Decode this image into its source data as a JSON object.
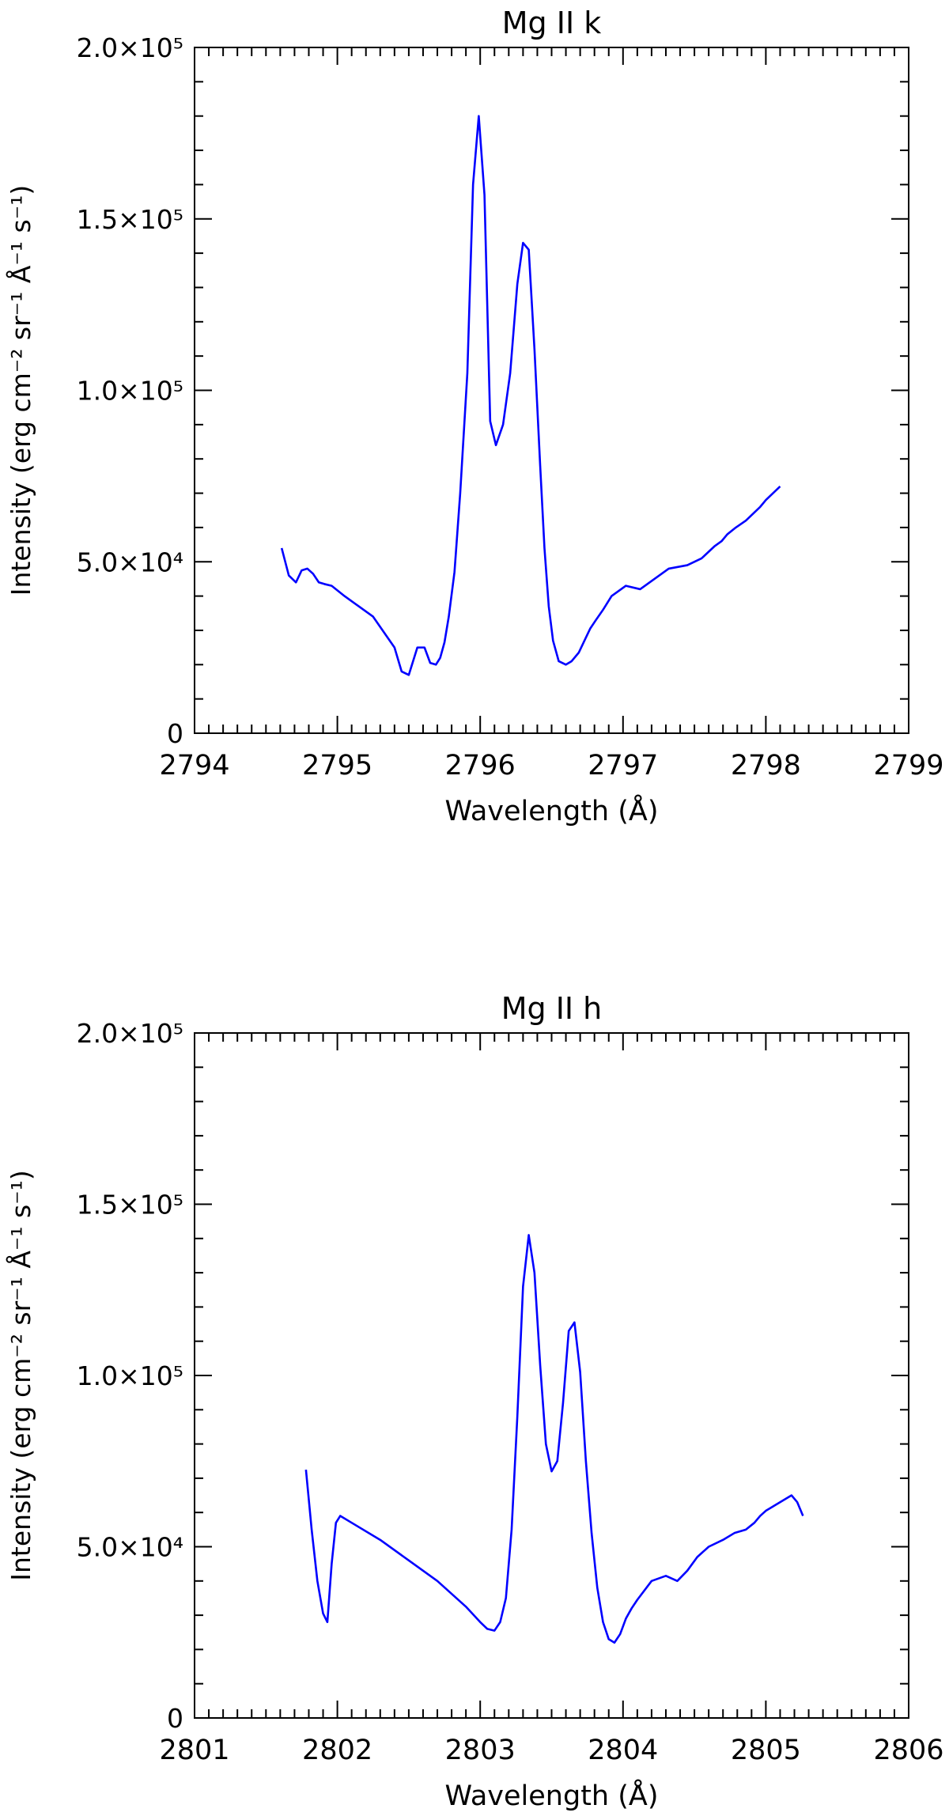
{
  "chart_data": [
    {
      "type": "line",
      "title": "Mg II k",
      "xlabel": "Wavelength (Å)",
      "ylabel": "Intensity (erg cm⁻² sr⁻¹ Å⁻¹ s⁻¹)",
      "xlim": [
        2794,
        2799
      ],
      "ylim": [
        0,
        200000
      ],
      "xticks": [
        2794,
        2795,
        2796,
        2797,
        2798,
        2799
      ],
      "xtick_labels": [
        "2794",
        "2795",
        "2796",
        "2797",
        "2798",
        "2799"
      ],
      "yticks": [
        0,
        50000,
        100000,
        150000,
        200000
      ],
      "ytick_labels": [
        "0",
        "5.0×10⁴",
        "1.0×10⁵",
        "1.5×10⁵",
        "2.0×10⁵"
      ],
      "grid": false,
      "line_color": "#0000ff",
      "series": [
        {
          "x": [
            2794.61,
            2794.66,
            2794.71,
            2794.75,
            2794.79,
            2794.83,
            2794.87,
            2794.91,
            2794.96,
            2795.05,
            2795.15,
            2795.25,
            2795.35,
            2795.4,
            2795.45,
            2795.5,
            2795.56,
            2795.61,
            2795.65,
            2795.69,
            2795.72,
            2795.75,
            2795.78,
            2795.82,
            2795.86,
            2795.91,
            2795.95,
            2795.99,
            2796.03,
            2796.07,
            2796.11,
            2796.16,
            2796.21,
            2796.26,
            2796.3,
            2796.34,
            2796.38,
            2796.42,
            2796.45,
            2796.48,
            2796.51,
            2796.55,
            2796.6,
            2796.64,
            2796.69,
            2796.73,
            2796.77,
            2796.81,
            2796.86,
            2796.92,
            2797.02,
            2797.12,
            2797.22,
            2797.32,
            2797.45,
            2797.55,
            2797.64,
            2797.69,
            2797.73,
            2797.79,
            2797.86,
            2797.91,
            2797.96,
            2798.0,
            2798.05,
            2798.1
          ],
          "y": [
            54000,
            46000,
            44000,
            47500,
            48000,
            46500,
            44000,
            43500,
            43000,
            40000,
            37000,
            34000,
            28000,
            25000,
            18000,
            17000,
            25000,
            25000,
            20500,
            20000,
            22000,
            26500,
            34000,
            47000,
            70000,
            105000,
            160000,
            180000,
            157000,
            91000,
            84000,
            90000,
            105000,
            131000,
            143000,
            141000,
            112000,
            78000,
            54000,
            37000,
            27000,
            21000,
            20000,
            21000,
            23500,
            27000,
            30500,
            33000,
            36000,
            40000,
            43000,
            42000,
            45000,
            48000,
            49000,
            51000,
            54500,
            56000,
            58000,
            60000,
            62000,
            64000,
            66000,
            68000,
            70000,
            72000
          ]
        }
      ]
    },
    {
      "type": "line",
      "title": "Mg II h",
      "xlabel": "Wavelength (Å)",
      "ylabel": "Intensity (erg cm⁻² sr⁻¹ Å⁻¹ s⁻¹)",
      "xlim": [
        2801,
        2806
      ],
      "ylim": [
        0,
        200000
      ],
      "xticks": [
        2801,
        2802,
        2803,
        2804,
        2805,
        2806
      ],
      "xtick_labels": [
        "2801",
        "2802",
        "2803",
        "2804",
        "2805",
        "2806"
      ],
      "yticks": [
        0,
        50000,
        100000,
        150000,
        200000
      ],
      "ytick_labels": [
        "0",
        "5.0×10⁴",
        "1.0×10⁵",
        "1.5×10⁵",
        "2.0×10⁵"
      ],
      "grid": false,
      "line_color": "#0000ff",
      "series": [
        {
          "x": [
            2801.78,
            2801.82,
            2801.86,
            2801.9,
            2801.93,
            2801.96,
            2801.99,
            2802.02,
            2802.1,
            2802.3,
            2802.5,
            2802.7,
            2802.9,
            2803.0,
            2803.05,
            2803.1,
            2803.14,
            2803.18,
            2803.22,
            2803.26,
            2803.3,
            2803.34,
            2803.38,
            2803.42,
            2803.46,
            2803.5,
            2803.54,
            2803.58,
            2803.62,
            2803.66,
            2803.7,
            2803.74,
            2803.78,
            2803.82,
            2803.86,
            2803.9,
            2803.94,
            2803.98,
            2804.02,
            2804.06,
            2804.1,
            2804.2,
            2804.3,
            2804.38,
            2804.45,
            2804.52,
            2804.6,
            2804.7,
            2804.78,
            2804.86,
            2804.92,
            2804.96,
            2805.0,
            2805.06,
            2805.12,
            2805.18,
            2805.22,
            2805.26
          ],
          "y": [
            72500,
            55000,
            40000,
            30500,
            28000,
            45000,
            57000,
            59000,
            57000,
            52000,
            46000,
            40000,
            32500,
            28000,
            26000,
            25500,
            28000,
            35000,
            55000,
            88000,
            126000,
            141000,
            130000,
            103000,
            80000,
            72000,
            75000,
            92000,
            113000,
            115500,
            101000,
            75000,
            54000,
            38000,
            28000,
            23000,
            22000,
            24500,
            29000,
            32000,
            34500,
            40000,
            41500,
            40000,
            43000,
            47000,
            50000,
            52000,
            54000,
            55000,
            57000,
            59000,
            60500,
            62000,
            63500,
            65000,
            63000,
            59000
          ]
        }
      ]
    }
  ]
}
